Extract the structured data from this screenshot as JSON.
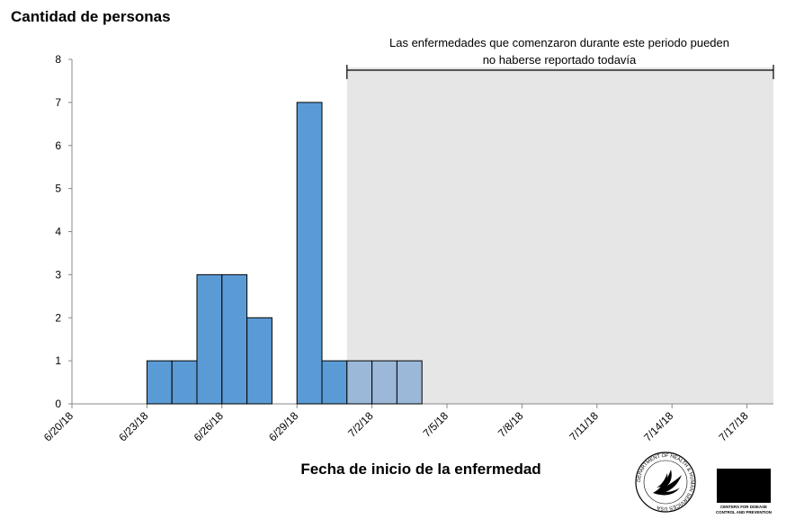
{
  "chart_data": {
    "type": "bar",
    "ylabel": "Cantidad de personas",
    "xlabel": "Fecha de inicio de la enfermedad",
    "ylim": [
      0,
      8
    ],
    "yticks": [
      0,
      1,
      2,
      3,
      4,
      5,
      6,
      7,
      8
    ],
    "xlim": [
      "6/20/18",
      "7/17/18"
    ],
    "xticks": [
      "6/20/18",
      "6/23/18",
      "6/26/18",
      "6/29/18",
      "7/2/18",
      "7/5/18",
      "7/8/18",
      "7/11/18",
      "7/14/18",
      "7/17/18"
    ],
    "series": [
      {
        "values": [
          {
            "date": "6/23/18",
            "count": 1
          },
          {
            "date": "6/24/18",
            "count": 1
          },
          {
            "date": "6/25/18",
            "count": 3
          },
          {
            "date": "6/26/18",
            "count": 3
          },
          {
            "date": "6/27/18",
            "count": 2
          },
          {
            "date": "6/29/18",
            "count": 7
          },
          {
            "date": "6/30/18",
            "count": 1
          },
          {
            "date": "7/1/18",
            "count": 1
          },
          {
            "date": "7/2/18",
            "count": 1
          },
          {
            "date": "7/3/18",
            "count": 1
          }
        ]
      }
    ],
    "annotation": {
      "text_line1": "Las enfermedades que comenzaron durante este periodo pueden",
      "text_line2": "no haberse reportado todavía",
      "range_start": "7/1/18",
      "range_end": "7/17/18"
    },
    "colors": {
      "bar": "#5b9bd5",
      "bar_shaded": "#9bb8d9",
      "shade": "#e6e6e6"
    }
  },
  "logos": {
    "cdc": "CDC",
    "cdc_subtitle_1": "CENTERS FOR DISEASE",
    "cdc_subtitle_2": "CONTROL AND PREVENTION",
    "hhs_ring": "DEPARTMENT OF HEALTH & HUMAN SERVICES USA",
    "hhs_icon": "hhs-eagle-icon"
  }
}
